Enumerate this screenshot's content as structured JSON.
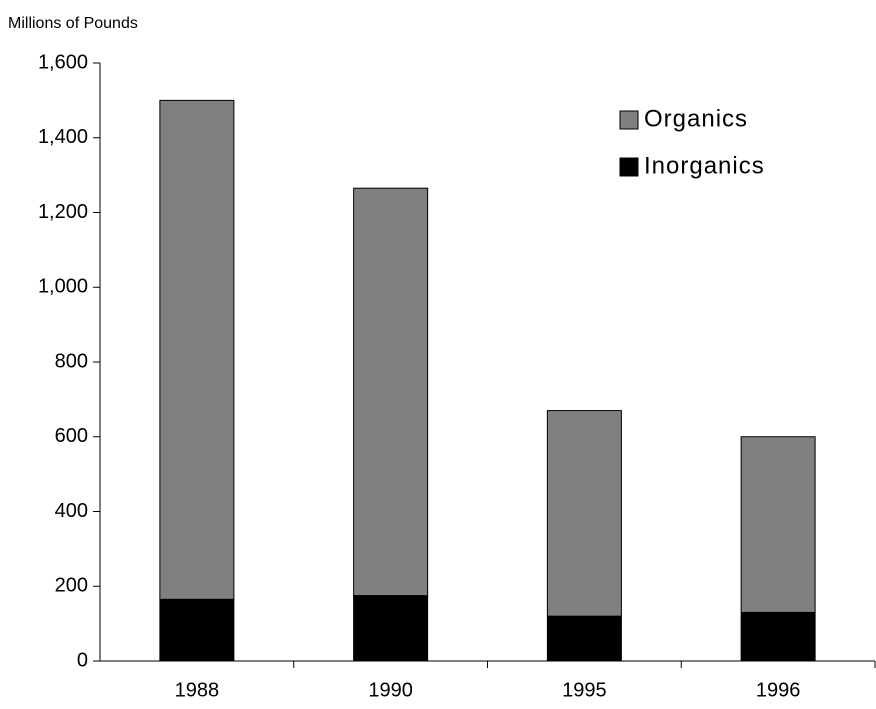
{
  "chart_data": {
    "type": "stacked_bar",
    "y_axis_title": "Millions of Pounds",
    "categories": [
      "1988",
      "1990",
      "1995",
      "1996"
    ],
    "series": [
      {
        "name": "Inorganics",
        "color": "#000000",
        "values": [
          165,
          175,
          120,
          130
        ]
      },
      {
        "name": "Organics",
        "color": "#808080",
        "values": [
          1335,
          1090,
          550,
          470
        ]
      }
    ],
    "ylim": [
      0,
      1600
    ],
    "yticks": [
      0,
      200,
      400,
      600,
      800,
      {
        "value": 1000,
        "label": "1,000"
      },
      {
        "value": 1200,
        "label": "1,200"
      },
      {
        "value": 1400,
        "label": "1,400"
      },
      {
        "value": 1600,
        "label": "1,600"
      }
    ],
    "grid": false,
    "legend": "top-right"
  }
}
